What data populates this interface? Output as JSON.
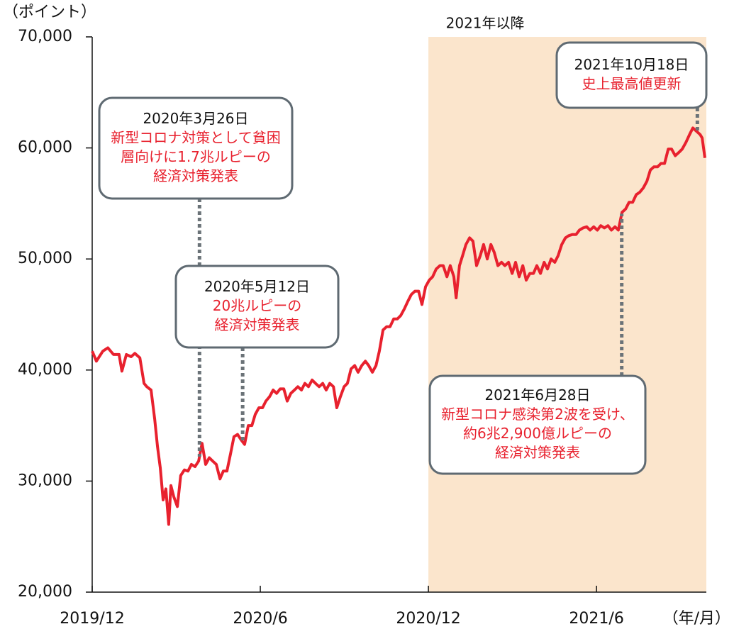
{
  "chart_data": {
    "type": "line",
    "y_unit_label": "（ポイント）",
    "x_unit_label": "（年/月）",
    "color": "#e8212e",
    "xlim": [
      0,
      21.92
    ],
    "xticks": [
      {
        "value": 0,
        "label": "2019/12"
      },
      {
        "value": 6,
        "label": "2020/6"
      },
      {
        "value": 12,
        "label": "2020/12"
      },
      {
        "value": 18,
        "label": "2021/6"
      }
    ],
    "ylim": [
      20000,
      70000
    ],
    "yticks": [
      {
        "value": 20000,
        "label": "20,000"
      },
      {
        "value": 30000,
        "label": "30,000"
      },
      {
        "value": 40000,
        "label": "40,000"
      },
      {
        "value": 50000,
        "label": "50,000"
      },
      {
        "value": 60000,
        "label": "60,000"
      },
      {
        "value": 70000,
        "label": "70,000"
      }
    ],
    "shade": {
      "from": 12,
      "to": 21.92,
      "label": "2021年以降",
      "color": "#fbe5cc"
    },
    "x": [
      0,
      0.15,
      0.38,
      0.56,
      0.76,
      0.96,
      1.06,
      1.22,
      1.39,
      1.52,
      1.7,
      1.85,
      1.95,
      2.1,
      2.23,
      2.33,
      2.43,
      2.53,
      2.63,
      2.73,
      2.81,
      2.91,
      3.04,
      3.16,
      3.29,
      3.42,
      3.54,
      3.67,
      3.8,
      3.92,
      4.05,
      4.18,
      4.3,
      4.43,
      4.56,
      4.68,
      4.81,
      4.94,
      5.06,
      5.19,
      5.32,
      5.44,
      5.57,
      5.7,
      5.82,
      5.95,
      6.08,
      6.2,
      6.33,
      6.46,
      6.58,
      6.71,
      6.84,
      6.96,
      7.09,
      7.22,
      7.34,
      7.47,
      7.59,
      7.72,
      7.85,
      7.97,
      8.1,
      8.23,
      8.35,
      8.48,
      8.61,
      8.73,
      8.86,
      8.99,
      9.11,
      9.24,
      9.37,
      9.49,
      9.62,
      9.75,
      9.87,
      10.0,
      10.13,
      10.25,
      10.38,
      10.51,
      10.63,
      10.76,
      10.89,
      11.01,
      11.14,
      11.27,
      11.39,
      11.52,
      11.65,
      11.77,
      11.9,
      12.03,
      12.15,
      12.28,
      12.41,
      12.53,
      12.66,
      12.78,
      12.91,
      12.99,
      13.11,
      13.22,
      13.34,
      13.47,
      13.59,
      13.72,
      13.85,
      13.97,
      14.1,
      14.23,
      14.35,
      14.48,
      14.61,
      14.73,
      14.86,
      14.99,
      15.11,
      15.24,
      15.37,
      15.49,
      15.62,
      15.75,
      15.87,
      16.0,
      16.13,
      16.25,
      16.38,
      16.51,
      16.63,
      16.76,
      16.89,
      17.01,
      17.14,
      17.27,
      17.39,
      17.52,
      17.65,
      17.77,
      17.9,
      18.03,
      18.15,
      18.28,
      18.41,
      18.53,
      18.66,
      18.78,
      18.91,
      19.04,
      19.16,
      19.29,
      19.42,
      19.54,
      19.67,
      19.8,
      19.92,
      20.05,
      20.18,
      20.3,
      20.43,
      20.56,
      20.68,
      20.81,
      20.94,
      21.06,
      21.19,
      21.32,
      21.44,
      21.57,
      21.7,
      21.77,
      21.87
    ],
    "values": [
      41700,
      40800,
      41700,
      42000,
      41400,
      41400,
      39900,
      41400,
      41200,
      41500,
      41100,
      38800,
      38500,
      38200,
      35600,
      33100,
      31200,
      28300,
      29300,
      26100,
      29600,
      28600,
      27700,
      30500,
      31000,
      30900,
      31500,
      31300,
      31800,
      33400,
      31500,
      32100,
      31800,
      31500,
      30200,
      30900,
      30900,
      32500,
      34000,
      34200,
      33700,
      33300,
      35000,
      35000,
      36000,
      36600,
      36600,
      37200,
      37600,
      38200,
      37900,
      38300,
      38300,
      37200,
      37900,
      38200,
      38500,
      38200,
      38800,
      38500,
      39100,
      38800,
      38500,
      38800,
      38200,
      38800,
      38500,
      36600,
      37600,
      38500,
      38800,
      40100,
      40400,
      39800,
      40400,
      40800,
      40400,
      39800,
      40400,
      41700,
      43600,
      43900,
      43900,
      44600,
      44600,
      44900,
      45500,
      46200,
      46800,
      47100,
      47100,
      45900,
      47500,
      48100,
      48400,
      49100,
      49400,
      49400,
      48400,
      49400,
      48400,
      46500,
      49400,
      50300,
      51300,
      51900,
      51600,
      49400,
      50300,
      51300,
      50000,
      51300,
      50600,
      49400,
      49700,
      49400,
      49700,
      48700,
      49700,
      48400,
      49400,
      48100,
      48700,
      48700,
      49400,
      48700,
      49700,
      49100,
      50000,
      49700,
      50300,
      51300,
      51900,
      52100,
      52200,
      52200,
      52600,
      52800,
      52900,
      52600,
      52900,
      52600,
      53000,
      52800,
      53000,
      52600,
      52900,
      52600,
      54200,
      54500,
      55100,
      55100,
      55800,
      56000,
      56400,
      57000,
      58000,
      58300,
      58300,
      58600,
      58600,
      59900,
      59900,
      59300,
      59600,
      59900,
      60500,
      61200,
      61800,
      61500,
      61200,
      60900,
      59100
    ],
    "annotations": [
      {
        "x": 3.83,
        "date": "2020年3月26日",
        "lines": [
          "新型コロナ対策として貧困",
          "層向けに1.7兆ルピーの",
          "経済対策発表"
        ]
      },
      {
        "x": 5.37,
        "date": "2020年5月12日",
        "lines": [
          "20兆ルピーの",
          "経済対策発表"
        ]
      },
      {
        "x": 18.9,
        "date": "2021年6月28日",
        "lines": [
          "新型コロナ感染第2波を受け、",
          "約6兆2,900億ルピーの",
          "経済対策発表"
        ]
      },
      {
        "x": 21.6,
        "date": "2021年10月18日",
        "lines": [
          "史上最高値更新"
        ]
      }
    ]
  }
}
